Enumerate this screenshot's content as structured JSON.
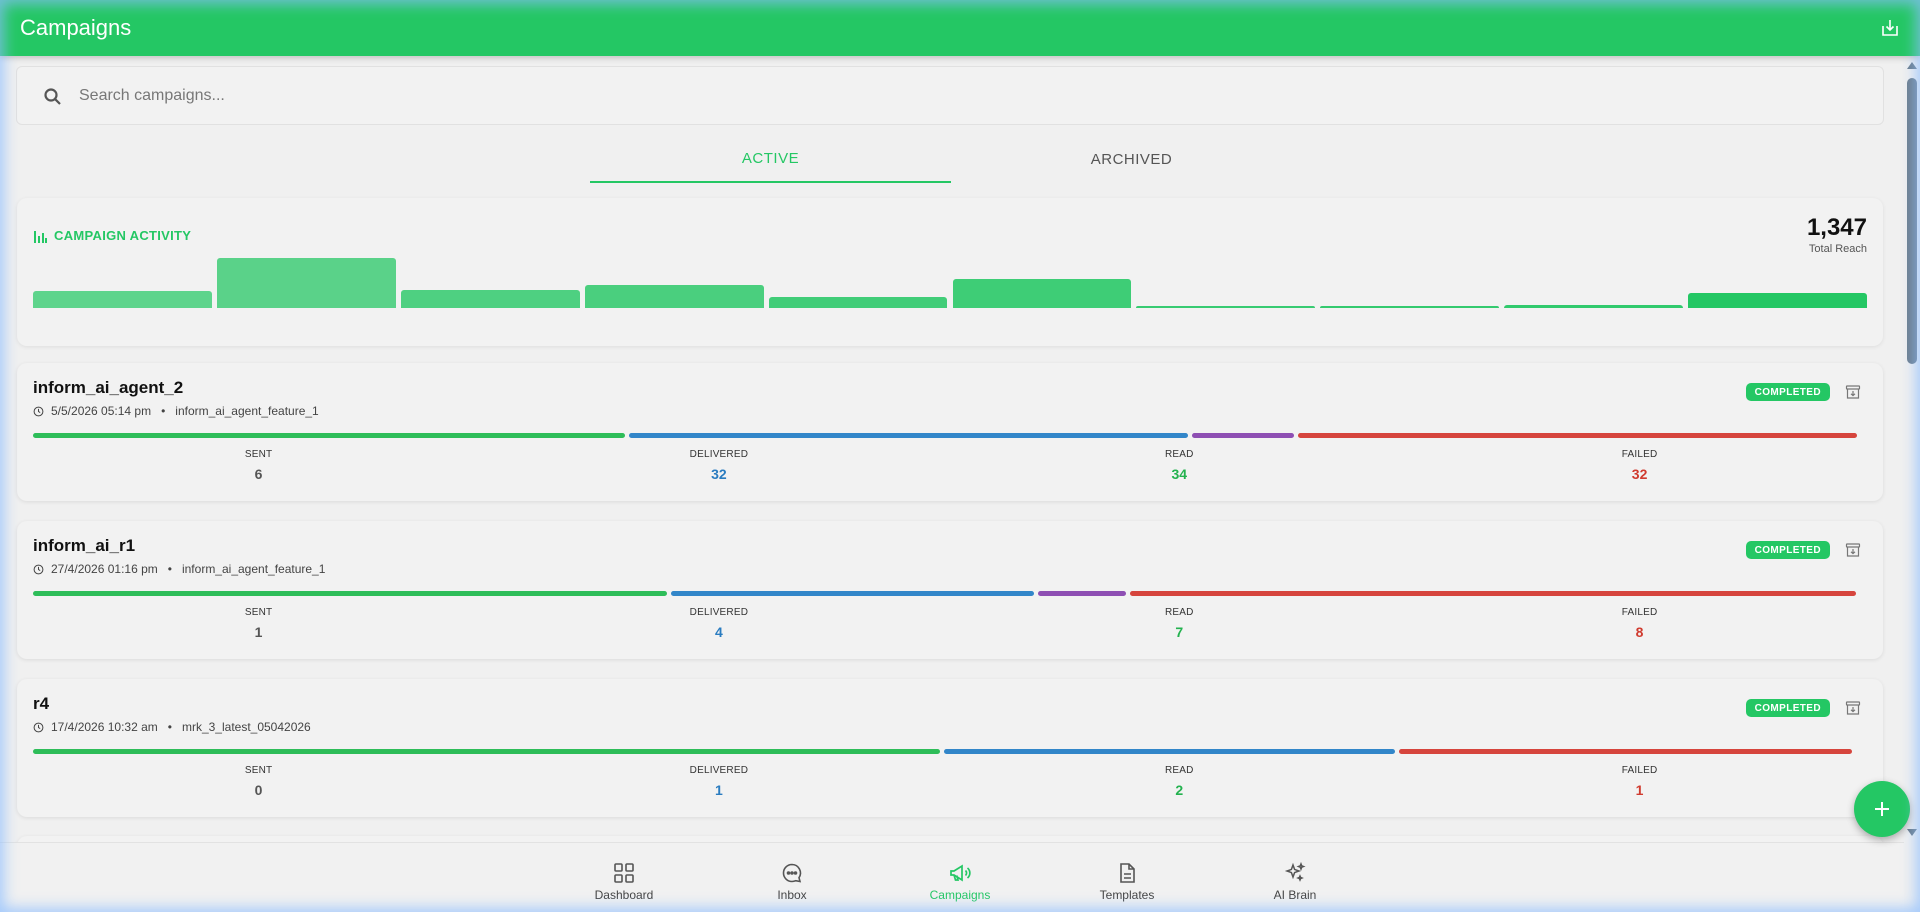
{
  "header": {
    "title": "Campaigns",
    "export_icon": "download-icon"
  },
  "search": {
    "placeholder": "Search campaigns...",
    "value": ""
  },
  "tabs": [
    {
      "label": "ACTIVE",
      "active": true
    },
    {
      "label": "ARCHIVED",
      "active": false
    }
  ],
  "activity": {
    "title": "CAMPAIGN ACTIVITY",
    "total_reach": "1,347",
    "total_reach_label": "Total Reach",
    "bar_levels": [
      0.34,
      1.0,
      0.36,
      0.46,
      0.21,
      0.58,
      0.04,
      0.04,
      0.06,
      0.3
    ]
  },
  "campaigns": [
    {
      "name": "inform_ai_agent_2",
      "datetime": "5/5/2026 05:14 pm",
      "template": "inform_ai_agent_feature_1",
      "status": "COMPLETED",
      "segments": [
        0.325,
        0.307,
        0.058,
        0.307
      ],
      "stats": {
        "sent_label": "SENT",
        "sent": "6",
        "delivered_label": "DELIVERED",
        "delivered": "32",
        "read_label": "READ",
        "read": "34",
        "failed_label": "FAILED",
        "failed": "32"
      }
    },
    {
      "name": "inform_ai_r1",
      "datetime": "27/4/2026 01:16 pm",
      "template": "inform_ai_agent_feature_1",
      "status": "COMPLETED",
      "segments": [
        0.348,
        0.2,
        0.05,
        0.398
      ],
      "stats": {
        "sent_label": "SENT",
        "sent": "1",
        "delivered_label": "DELIVERED",
        "delivered": "4",
        "read_label": "READ",
        "read": "7",
        "failed_label": "FAILED",
        "failed": "8"
      }
    },
    {
      "name": "r4",
      "datetime": "17/4/2026 10:32 am",
      "template": "mrk_3_latest_05042026",
      "status": "COMPLETED",
      "segments": [
        0.497,
        0.248,
        0,
        0.249
      ],
      "stats": {
        "sent_label": "SENT",
        "sent": "0",
        "delivered_label": "DELIVERED",
        "delivered": "1",
        "read_label": "READ",
        "read": "2",
        "failed_label": "FAILED",
        "failed": "1"
      }
    }
  ],
  "nav": [
    {
      "label": "Dashboard",
      "icon": "dashboard-grid-icon",
      "active": false
    },
    {
      "label": "Inbox",
      "icon": "chat-bubble-icon",
      "active": false
    },
    {
      "label": "Campaigns",
      "icon": "megaphone-icon",
      "active": true
    },
    {
      "label": "Templates",
      "icon": "document-icon",
      "active": false
    },
    {
      "label": "AI Brain",
      "icon": "sparkles-icon",
      "active": false
    }
  ],
  "colors": {
    "brand": "#24c764",
    "sent": "#2ebd59",
    "delivered": "#3286c9",
    "read": "#8e4fb3",
    "failed": "#d6453d",
    "read_value": "#24b24f",
    "sent_value": "#555555",
    "delivered_value": "#2a7cc0",
    "failed_value": "#d03b2f"
  }
}
